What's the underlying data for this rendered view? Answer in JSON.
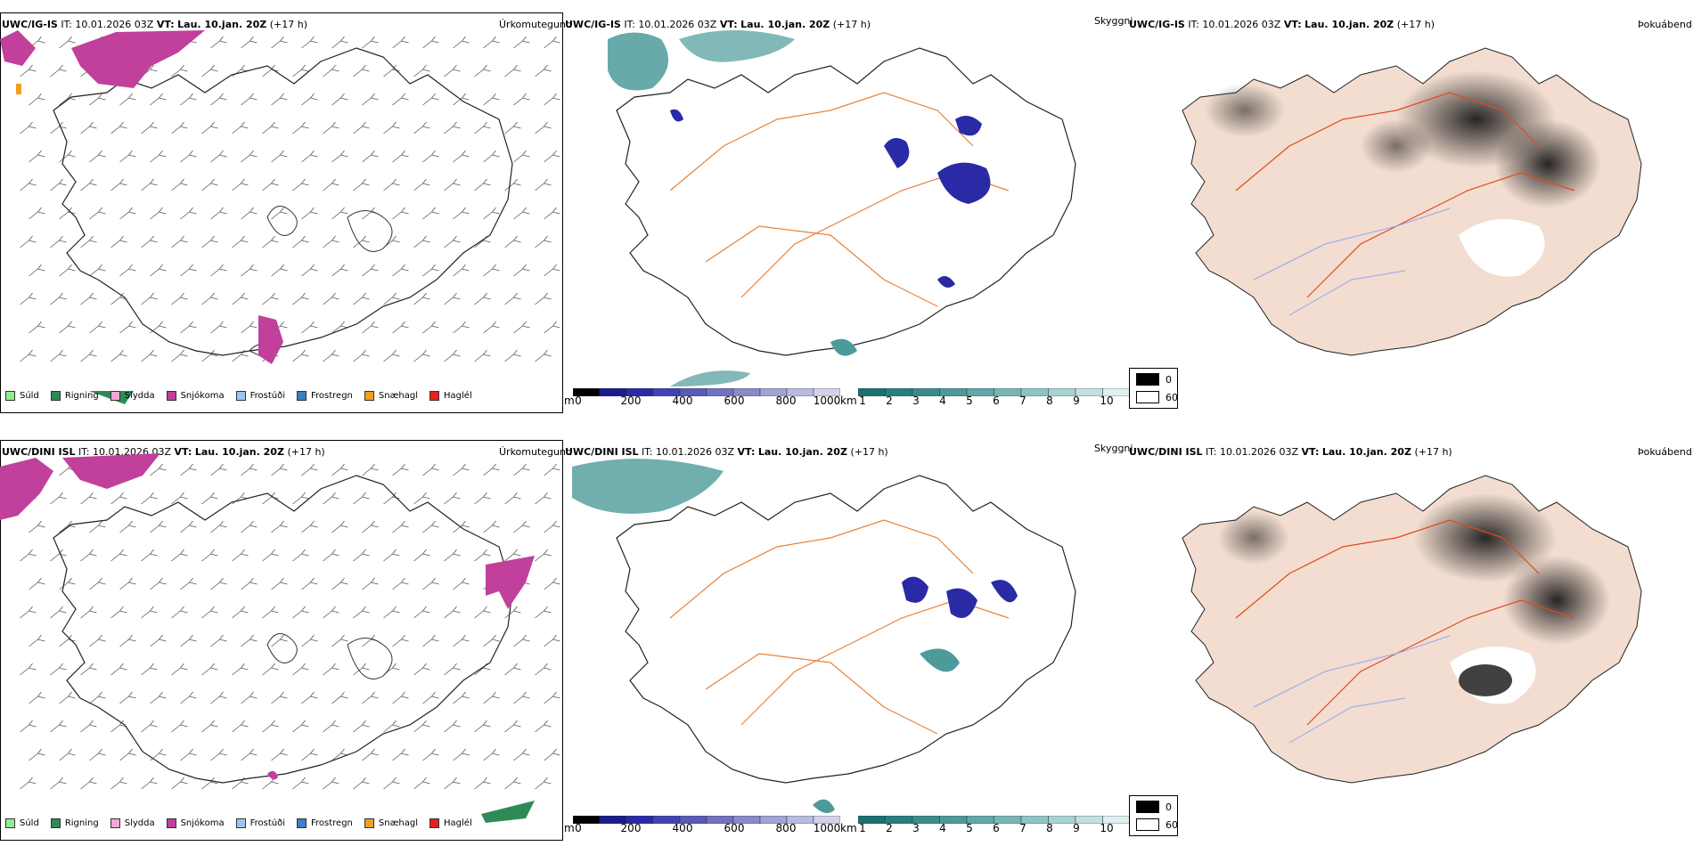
{
  "rows": [
    {
      "model": "UWC/IG-IS",
      "it_label": "IT:",
      "it_value": "10.01.2026 03Z",
      "vt_label": "VT:",
      "vt_value": "Lau. 10.jan. 20Z",
      "lead": "(+17 h)"
    },
    {
      "model": "UWC/DINI ISL",
      "it_label": "IT:",
      "it_value": "10.01.2026 03Z",
      "vt_label": "VT:",
      "vt_value": "Lau. 10.jan. 20Z",
      "lead": "(+17 h)"
    }
  ],
  "panel_titles": {
    "precip": "Úrkomutegund",
    "visibility": "Skyggni",
    "fog": "Þokuábendi"
  },
  "precip_legend": [
    {
      "label": "Súld",
      "color": "#90ee90"
    },
    {
      "label": "Rigning",
      "color": "#2e8b57"
    },
    {
      "label": "Slydda",
      "color": "#f4a6d7"
    },
    {
      "label": "Snjókoma",
      "color": "#c0409c"
    },
    {
      "label": "Frostúði",
      "color": "#a0c4f0"
    },
    {
      "label": "Frostregn",
      "color": "#3a7fc8"
    },
    {
      "label": "Snæhagl",
      "color": "#f0a020"
    },
    {
      "label": "Haglél",
      "color": "#e8201c"
    }
  ],
  "elevation_bar": {
    "unit": "m",
    "ticks": [
      "0",
      "200",
      "400",
      "600",
      "800",
      "1000"
    ],
    "colors": [
      "#000000",
      "#1b1b8a",
      "#2a2aa6",
      "#4242b4",
      "#5a5ab8",
      "#7272c2",
      "#8a8ac8",
      "#a2a2d4",
      "#babae0",
      "#d2d2ea"
    ]
  },
  "visibility_bar": {
    "unit": "km",
    "ticks": [
      "1",
      "2",
      "3",
      "4",
      "5",
      "6",
      "7",
      "8",
      "9",
      "10"
    ],
    "colors": [
      "#1d7070",
      "#2a7e7e",
      "#3a8c8c",
      "#4d9a9a",
      "#62a8a8",
      "#78b6b6",
      "#90c4c4",
      "#a8d2d2",
      "#c2e0e0",
      "#e0f0f0"
    ]
  },
  "fog_legend": {
    "items": [
      {
        "label": "0",
        "color": "#000000"
      },
      {
        "label": "60",
        "color": "#ffffff"
      }
    ]
  },
  "colors": {
    "land_fill": "#f2ddd0",
    "road": "#e8823a",
    "road_red": "#e04a20",
    "river": "#8fa6f0",
    "snow": "#c0409c",
    "vis_teal": "#4d9a9a",
    "vis_blue": "#2a2aa6"
  }
}
